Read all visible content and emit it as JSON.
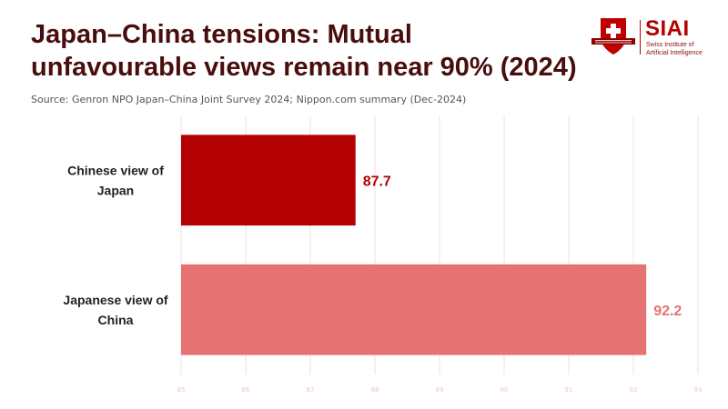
{
  "header": {
    "title_line1": "Japan–China tensions: Mutual",
    "title_line2": "unfavourable views remain near 90% (2024)",
    "source": "Source: Genron NPO Japan–China Joint Survey 2024; Nippon.com summary (Dec-2024)"
  },
  "logo": {
    "name": "SIAI",
    "sub_line1": "Swiss Institute of",
    "sub_line2": "Artificial Intelligence",
    "icon": "swiss-cross-shield-icon",
    "accent": "#c00000"
  },
  "chart_data": {
    "type": "bar",
    "orientation": "horizontal",
    "title": "Japan–China tensions: Mutual unfavourable views remain near 90% (2024)",
    "categories": [
      "Chinese view of Japan",
      "Japanese view of China"
    ],
    "category_lines": [
      [
        "Chinese view of",
        "Japan"
      ],
      [
        "Japanese view of",
        "China"
      ]
    ],
    "values": [
      87.7,
      92.2
    ],
    "colors": [
      "#b30000",
      "#e57373"
    ],
    "label_colors": [
      "#b30000",
      "#e57373"
    ],
    "xlim": [
      85,
      93
    ],
    "xticks": [
      85,
      86,
      87,
      88,
      89,
      90,
      91,
      92,
      93
    ],
    "xlabel": "",
    "ylabel": "",
    "grid": true
  }
}
